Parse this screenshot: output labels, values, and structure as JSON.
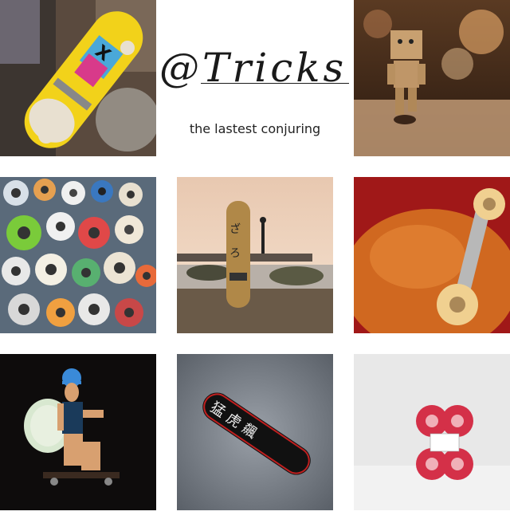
{
  "brand": {
    "logo_text": "@Tricks",
    "tagline": "the lastest conjuring"
  },
  "tiles": [
    {
      "name": "keith-haring-skateboard-photo"
    },
    {
      "name": "danbo-skater-photo"
    },
    {
      "name": "skate-wheels-wall-photo"
    },
    {
      "name": "beach-skateboard-photo"
    },
    {
      "name": "orange-deck-truck-photo"
    },
    {
      "name": "girl-longboard-photo"
    },
    {
      "name": "calligraphy-deck-photo"
    },
    {
      "name": "red-wheels-photo"
    }
  ],
  "colors": {
    "background": "#ffffff",
    "text": "#1a1a1a"
  }
}
